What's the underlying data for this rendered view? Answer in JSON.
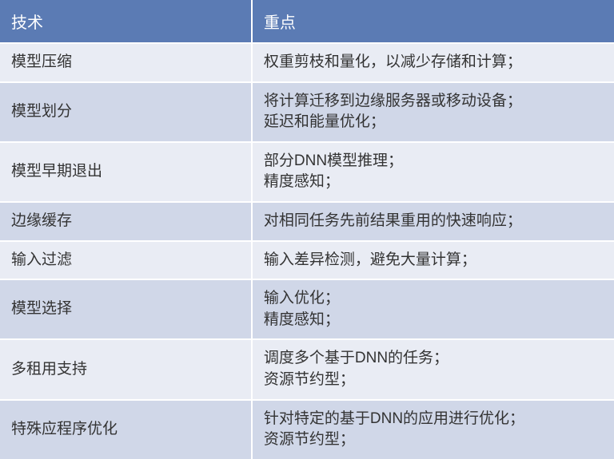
{
  "table": {
    "type": "table",
    "header_bg": "#5b7bb4",
    "header_text_color": "#ffffff",
    "row_bg_odd": "#e9ecf4",
    "row_bg_even": "#d0d7e8",
    "row_text_color": "#333333",
    "border_color": "#ffffff",
    "font_family": "Microsoft YaHei",
    "header_fontsize": 20,
    "cell_fontsize": 19,
    "col_widths": [
      "41%",
      "59%"
    ],
    "columns": [
      "技术",
      "重点"
    ],
    "rows": [
      [
        "模型压缩",
        "权重剪枝和量化，以减少存储和计算；"
      ],
      [
        "模型划分",
        "将计算迁移到边缘服务器或移动设备；\n延迟和能量优化；"
      ],
      [
        "模型早期退出",
        "部分DNN模型推理；\n精度感知；"
      ],
      [
        "边缘缓存",
        "对相同任务先前结果重用的快速响应；"
      ],
      [
        "输入过滤",
        "输入差异检测，避免大量计算；"
      ],
      [
        "模型选择",
        "输入优化；\n精度感知；"
      ],
      [
        "多租用支持",
        "调度多个基于DNN的任务；\n资源节约型；"
      ],
      [
        "特殊应程序优化",
        "针对特定的基于DNN的应用进行优化；\n资源节约型；"
      ]
    ]
  }
}
